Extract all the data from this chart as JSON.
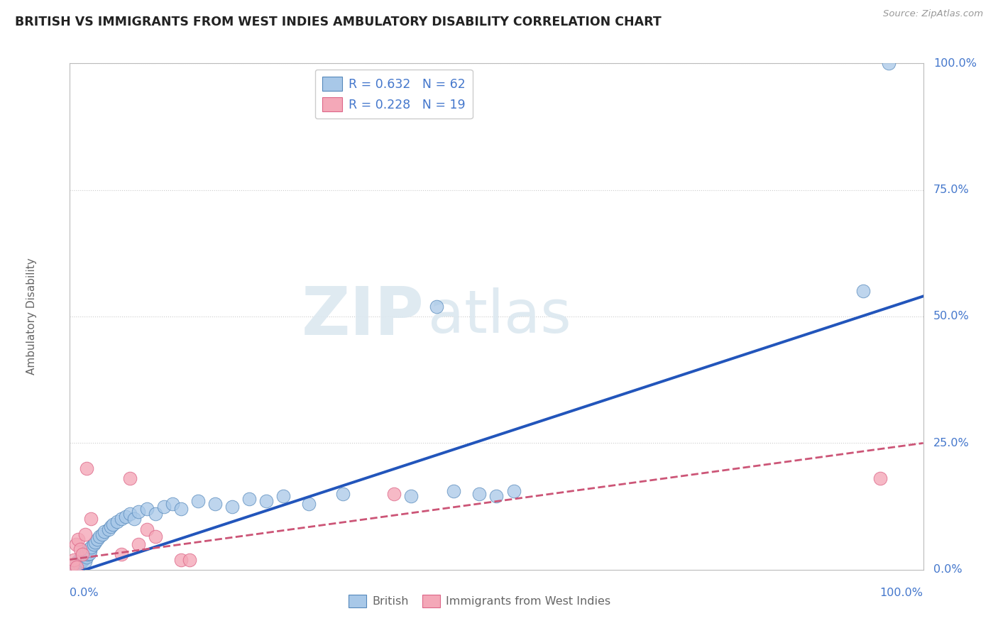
{
  "title": "BRITISH VS IMMIGRANTS FROM WEST INDIES AMBULATORY DISABILITY CORRELATION CHART",
  "source": "Source: ZipAtlas.com",
  "ylabel": "Ambulatory Disability",
  "xlim": [
    0,
    1
  ],
  "ylim": [
    0,
    1
  ],
  "ytick_labels": [
    "0.0%",
    "25.0%",
    "50.0%",
    "75.0%",
    "100.0%"
  ],
  "ytick_values": [
    0.0,
    0.25,
    0.5,
    0.75,
    1.0
  ],
  "xtick_labels": [
    "0.0%",
    "100.0%"
  ],
  "legend_labels": [
    "R = 0.632   N = 62",
    "R = 0.228   N = 19"
  ],
  "british_color": "#a8c8e8",
  "british_edge_color": "#5588bb",
  "west_indies_color": "#f4a8b8",
  "west_indies_edge_color": "#dd6688",
  "regression_british_color": "#2255bb",
  "regression_wi_color": "#cc5577",
  "watermark_zip": "ZIP",
  "watermark_atlas": "atlas",
  "background_color": "#ffffff",
  "grid_color": "#cccccc",
  "title_color": "#222222",
  "text_color_blue": "#4477cc",
  "text_color_gray": "#666666",
  "british_x": [
    0.002,
    0.003,
    0.004,
    0.005,
    0.006,
    0.007,
    0.008,
    0.009,
    0.01,
    0.01,
    0.011,
    0.012,
    0.013,
    0.014,
    0.015,
    0.016,
    0.017,
    0.018,
    0.019,
    0.02,
    0.02,
    0.021,
    0.022,
    0.023,
    0.024,
    0.025,
    0.028,
    0.03,
    0.032,
    0.035,
    0.038,
    0.04,
    0.045,
    0.048,
    0.05,
    0.055,
    0.06,
    0.065,
    0.07,
    0.075,
    0.08,
    0.09,
    0.1,
    0.11,
    0.12,
    0.13,
    0.15,
    0.17,
    0.19,
    0.21,
    0.23,
    0.25,
    0.28,
    0.32,
    0.4,
    0.43,
    0.45,
    0.48,
    0.5,
    0.52,
    0.93,
    0.96
  ],
  "british_y": [
    0.005,
    0.003,
    0.007,
    0.002,
    0.01,
    0.008,
    0.012,
    0.006,
    0.015,
    0.018,
    0.01,
    0.02,
    0.015,
    0.025,
    0.018,
    0.022,
    0.028,
    0.016,
    0.03,
    0.025,
    0.035,
    0.03,
    0.04,
    0.032,
    0.038,
    0.045,
    0.05,
    0.055,
    0.06,
    0.065,
    0.07,
    0.075,
    0.08,
    0.085,
    0.09,
    0.095,
    0.1,
    0.105,
    0.11,
    0.1,
    0.115,
    0.12,
    0.11,
    0.125,
    0.13,
    0.12,
    0.135,
    0.13,
    0.125,
    0.14,
    0.135,
    0.145,
    0.13,
    0.15,
    0.145,
    0.52,
    0.155,
    0.15,
    0.145,
    0.155,
    0.55,
    1.0
  ],
  "wi_x": [
    0.003,
    0.005,
    0.007,
    0.008,
    0.01,
    0.012,
    0.015,
    0.018,
    0.02,
    0.025,
    0.06,
    0.07,
    0.08,
    0.09,
    0.1,
    0.13,
    0.14,
    0.38,
    0.95
  ],
  "wi_y": [
    0.01,
    0.02,
    0.05,
    0.005,
    0.06,
    0.04,
    0.03,
    0.07,
    0.2,
    0.1,
    0.03,
    0.18,
    0.05,
    0.08,
    0.065,
    0.02,
    0.02,
    0.15,
    0.18
  ]
}
